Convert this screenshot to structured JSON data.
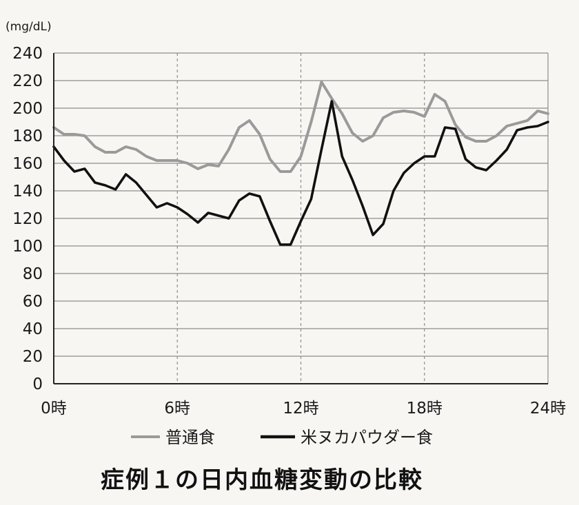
{
  "chart_data": {
    "type": "line",
    "title": "症例１の日内血糖変動の比較",
    "unit_label": "(mg/dL)",
    "xlabel": "",
    "ylabel": "",
    "ylim": [
      0,
      240
    ],
    "y_ticks": [
      0,
      20,
      40,
      60,
      80,
      100,
      120,
      140,
      160,
      180,
      200,
      220,
      240
    ],
    "xlim": [
      0,
      24
    ],
    "x_ticks": [
      {
        "value": 0,
        "label": "0時"
      },
      {
        "value": 6,
        "label": "6時"
      },
      {
        "value": 12,
        "label": "12時"
      },
      {
        "value": 18,
        "label": "18時"
      },
      {
        "value": 24,
        "label": "24時"
      }
    ],
    "grid": {
      "horizontal": "solid",
      "vertical": "dashed"
    },
    "legend_position": "bottom",
    "series": [
      {
        "name": "普通食",
        "color": "#9a9a9a",
        "x": [
          0,
          0.5,
          1,
          1.5,
          2,
          2.5,
          3,
          3.5,
          4,
          4.5,
          5,
          5.5,
          6,
          6.5,
          7,
          7.5,
          8,
          8.5,
          9,
          9.5,
          10,
          10.5,
          11,
          11.5,
          12,
          12.5,
          13,
          13.5,
          14,
          14.5,
          15,
          15.5,
          16,
          16.5,
          17,
          17.5,
          18,
          18.5,
          19,
          19.5,
          20,
          20.5,
          21,
          21.5,
          22,
          22.5,
          23,
          23.5,
          24
        ],
        "values": [
          186,
          181,
          181,
          180,
          172,
          168,
          168,
          172,
          170,
          165,
          162,
          162,
          162,
          160,
          156,
          159,
          158,
          170,
          186,
          191,
          181,
          163,
          154,
          154,
          165,
          190,
          219,
          207,
          196,
          182,
          176,
          180,
          193,
          197,
          198,
          197,
          194,
          210,
          205,
          188,
          179,
          176,
          176,
          180,
          187,
          189,
          191,
          198,
          196
        ]
      },
      {
        "name": "米ヌカパウダー食",
        "color": "#111111",
        "x": [
          0,
          0.5,
          1,
          1.5,
          2,
          2.5,
          3,
          3.5,
          4,
          4.5,
          5,
          5.5,
          6,
          6.5,
          7,
          7.5,
          8,
          8.5,
          9,
          9.5,
          10,
          10.5,
          11,
          11.5,
          12,
          12.5,
          13,
          13.5,
          14,
          14.5,
          15,
          15.5,
          16,
          16.5,
          17,
          17.5,
          18,
          18.5,
          19,
          19.5,
          20,
          20.5,
          21,
          21.5,
          22,
          22.5,
          23,
          23.5,
          24
        ],
        "values": [
          172,
          162,
          154,
          156,
          146,
          144,
          141,
          152,
          146,
          137,
          128,
          131,
          128,
          123,
          117,
          124,
          122,
          120,
          133,
          138,
          136,
          118,
          101,
          101,
          118,
          134,
          170,
          205,
          165,
          148,
          129,
          108,
          116,
          140,
          153,
          160,
          165,
          165,
          186,
          185,
          163,
          157,
          155,
          162,
          170,
          184,
          186,
          187,
          190
        ]
      }
    ]
  }
}
